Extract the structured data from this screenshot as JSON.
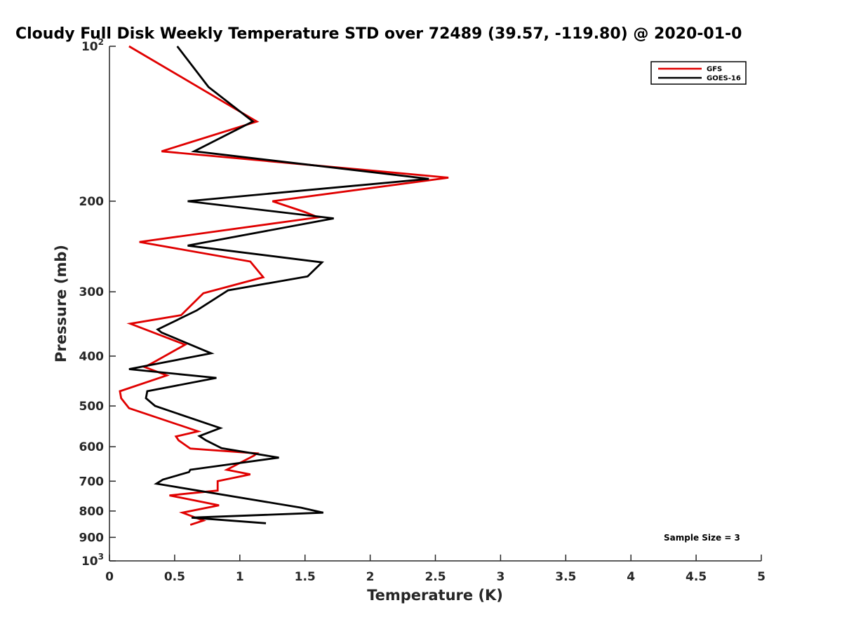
{
  "chart_data": {
    "type": "line",
    "title": "Cloudy Full Disk Weekly Temperature STD over 72489 (39.57, -119.80) @ 2020-01-0",
    "xlabel": "Temperature (K)",
    "ylabel": "Pressure (mb)",
    "xlim": [
      0,
      5
    ],
    "ylim": [
      1000,
      100
    ],
    "y_scale": "log",
    "y_reversed": true,
    "grid": false,
    "legend_position": "top-right",
    "x_ticks": [
      "0",
      "0.5",
      "1",
      "1.5",
      "2",
      "2.5",
      "3",
      "3.5",
      "4",
      "4.5",
      "5"
    ],
    "y_ticks": [
      {
        "value": 100,
        "base": "10",
        "exp": "2"
      },
      {
        "value": 200,
        "label": "200"
      },
      {
        "value": 300,
        "label": "300"
      },
      {
        "value": 400,
        "label": "400"
      },
      {
        "value": 500,
        "label": "500"
      },
      {
        "value": 600,
        "label": "600"
      },
      {
        "value": 700,
        "label": "700"
      },
      {
        "value": 800,
        "label": "800"
      },
      {
        "value": 900,
        "label": "900"
      },
      {
        "value": 1000,
        "base": "10",
        "exp": "3"
      }
    ],
    "series": [
      {
        "name": "GFS",
        "color": "#e00000",
        "points": [
          [
            0.15,
            100
          ],
          [
            1.13,
            140
          ],
          [
            0.4,
            160
          ],
          [
            2.6,
            180
          ],
          [
            1.25,
            200
          ],
          [
            1.5,
            210
          ],
          [
            1.6,
            215
          ],
          [
            0.23,
            240
          ],
          [
            1.08,
            262
          ],
          [
            1.18,
            281
          ],
          [
            0.72,
            302
          ],
          [
            0.55,
            333
          ],
          [
            0.16,
            346
          ],
          [
            0.58,
            380
          ],
          [
            0.34,
            411
          ],
          [
            0.27,
            420
          ],
          [
            0.44,
            436
          ],
          [
            0.08,
            468
          ],
          [
            0.09,
            483
          ],
          [
            0.15,
            505
          ],
          [
            0.68,
            560
          ],
          [
            0.51,
            573
          ],
          [
            0.53,
            583
          ],
          [
            0.62,
            605
          ],
          [
            1.13,
            618
          ],
          [
            1.11,
            624
          ],
          [
            0.9,
            665
          ],
          [
            1.08,
            679
          ],
          [
            0.83,
            700
          ],
          [
            0.83,
            730
          ],
          [
            0.46,
            746
          ],
          [
            0.84,
            780
          ],
          [
            0.56,
            806
          ],
          [
            0.72,
            835
          ],
          [
            0.62,
            851
          ]
        ]
      },
      {
        "name": "GOES-16",
        "color": "#000000",
        "points": [
          [
            0.52,
            100
          ],
          [
            0.76,
            120
          ],
          [
            1.1,
            140
          ],
          [
            0.65,
            160
          ],
          [
            2.45,
            181
          ],
          [
            0.6,
            200
          ],
          [
            1.72,
            216
          ],
          [
            0.6,
            244
          ],
          [
            1.63,
            263
          ],
          [
            1.52,
            280
          ],
          [
            0.91,
            298
          ],
          [
            0.67,
            326
          ],
          [
            0.37,
            355
          ],
          [
            0.4,
            360
          ],
          [
            0.78,
            395
          ],
          [
            0.15,
            424
          ],
          [
            0.82,
            441
          ],
          [
            0.29,
            468
          ],
          [
            0.28,
            483
          ],
          [
            0.35,
            500
          ],
          [
            0.85,
            552
          ],
          [
            0.69,
            572
          ],
          [
            0.74,
            583
          ],
          [
            0.86,
            604
          ],
          [
            1.3,
            630
          ],
          [
            0.62,
            665
          ],
          [
            0.61,
            672
          ],
          [
            0.41,
            695
          ],
          [
            0.36,
            708
          ],
          [
            1.47,
            788
          ],
          [
            1.64,
            806
          ],
          [
            0.63,
            824
          ],
          [
            1.2,
            845
          ]
        ]
      }
    ],
    "annotations": [
      {
        "text": "Sample Size = 3",
        "position": "bottom-right"
      }
    ]
  }
}
